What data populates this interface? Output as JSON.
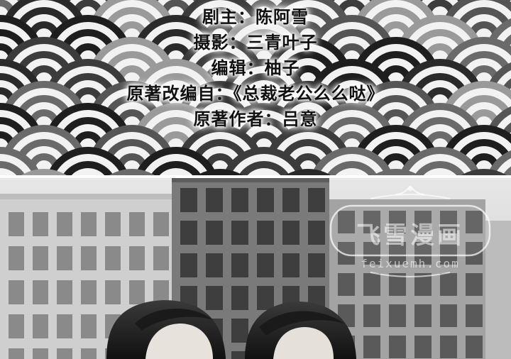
{
  "credits": {
    "lines": [
      "剧主：陈阿雪",
      "摄影：三青叶子",
      "编辑：柚子",
      "原著改编自：《总裁老公么么哒》",
      "原著作者：吕意"
    ]
  },
  "watermark": {
    "title": "飞雪漫画",
    "url": "feixuemh.com"
  },
  "colors": {
    "wave_dark": "#1e1e1e",
    "wave_light": "#f2f2f2",
    "photo_bg": "#d8d8d8"
  },
  "images": {
    "top": "seigaiha-wave-pattern",
    "bottom": "photo-buildings-two-people-grayscale"
  }
}
